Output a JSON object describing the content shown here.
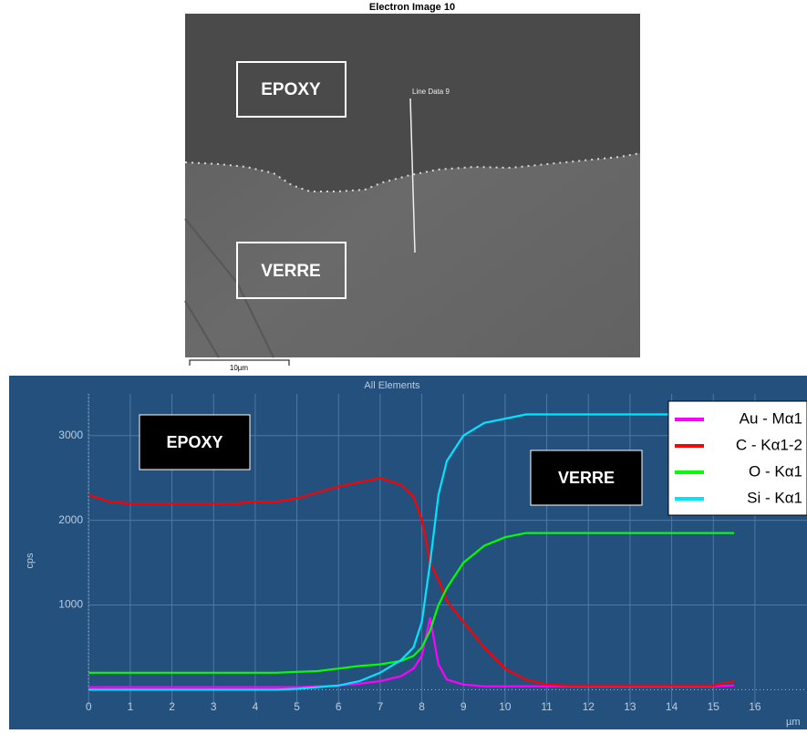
{
  "image": {
    "title": "Electron Image 10",
    "line_label": "Line Data 9",
    "scale_label": "10µm",
    "labels": [
      "EPOXY",
      "VERRE"
    ]
  },
  "chart_data": {
    "type": "line",
    "title": "All Elements",
    "y_label": "cps",
    "x_label": "µm",
    "x": [
      0,
      0.5,
      1,
      1.5,
      2,
      2.5,
      3,
      3.5,
      4,
      4.5,
      5,
      5.5,
      6,
      6.5,
      7,
      7.5,
      7.8,
      8,
      8.2,
      8.4,
      8.6,
      9,
      9.5,
      10,
      10.5,
      11,
      11.5,
      12,
      12.5,
      13,
      13.5,
      14,
      14.5,
      15,
      15.5
    ],
    "series": [
      {
        "name": "Au - Mα1",
        "color": "#ff00ff",
        "values": [
          30,
          30,
          30,
          30,
          30,
          30,
          30,
          30,
          30,
          30,
          30,
          40,
          50,
          70,
          100,
          160,
          250,
          400,
          850,
          300,
          120,
          60,
          40,
          40,
          40,
          40,
          40,
          40,
          40,
          40,
          40,
          40,
          40,
          40,
          50
        ]
      },
      {
        "name": "C - Kα1-2",
        "color": "#ff0000",
        "values": [
          2300,
          2220,
          2200,
          2200,
          2200,
          2200,
          2200,
          2200,
          2220,
          2220,
          2260,
          2330,
          2400,
          2450,
          2500,
          2420,
          2280,
          2000,
          1500,
          1300,
          1050,
          800,
          500,
          250,
          120,
          60,
          50,
          50,
          50,
          50,
          50,
          50,
          50,
          50,
          100
        ]
      },
      {
        "name": "O - Kα1",
        "color": "#00ff00",
        "values": [
          200,
          200,
          200,
          200,
          200,
          200,
          200,
          200,
          200,
          200,
          210,
          220,
          250,
          280,
          300,
          340,
          400,
          500,
          700,
          1000,
          1200,
          1500,
          1700,
          1800,
          1850,
          1850,
          1850,
          1850,
          1850,
          1850,
          1850,
          1850,
          1850,
          1850,
          1850
        ]
      },
      {
        "name": "Si - Kα1",
        "color": "#00e5ff",
        "values": [
          0,
          0,
          0,
          0,
          0,
          0,
          0,
          0,
          0,
          0,
          10,
          30,
          50,
          100,
          200,
          350,
          500,
          800,
          1500,
          2300,
          2700,
          3000,
          3150,
          3200,
          3250,
          3250,
          3250,
          3250,
          3250,
          3250,
          3250,
          3250,
          3250,
          3250,
          3250
        ]
      }
    ],
    "annotations": [
      "EPOXY",
      "VERRE"
    ],
    "xlim": [
      -0.75,
      17.25
    ],
    "ylim": [
      -200,
      3600
    ],
    "xticks": [
      0,
      1,
      2,
      3,
      4,
      5,
      6,
      7,
      8,
      9,
      10,
      11,
      12,
      13,
      14,
      15,
      16
    ],
    "yticks": [
      1000,
      2000,
      3000
    ],
    "grid": true
  }
}
